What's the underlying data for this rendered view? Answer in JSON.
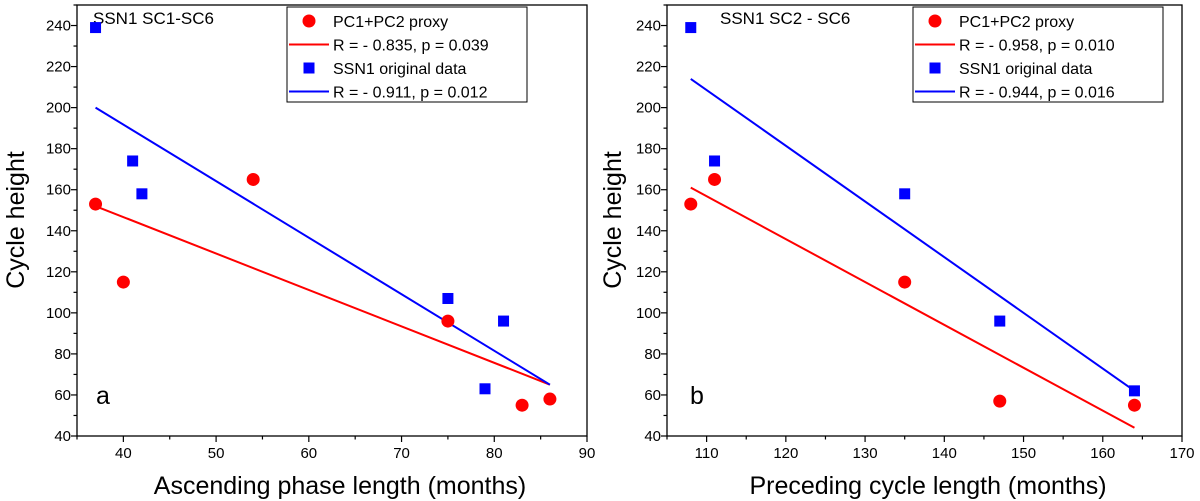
{
  "chart_data": [
    {
      "type": "scatter",
      "panel_title": "SSN1 SC1-SC6",
      "panel_letter": "a",
      "xlabel": "Ascending phase length (months)",
      "ylabel": "Cycle height",
      "xlim": [
        35,
        90
      ],
      "ylim": [
        40,
        250
      ],
      "xticks": [
        40,
        50,
        60,
        70,
        80,
        90
      ],
      "yticks": [
        40,
        60,
        80,
        100,
        120,
        140,
        160,
        180,
        200,
        220,
        240
      ],
      "series": [
        {
          "name": "PC1+PC2 proxy",
          "marker": "circle",
          "color": "#ff0000",
          "points": [
            [
              37,
              153
            ],
            [
              40,
              115
            ],
            [
              54,
              165
            ],
            [
              75,
              96
            ],
            [
              83,
              55
            ],
            [
              86,
              58
            ]
          ],
          "fit": {
            "label": "R = - 0.835, p = 0.039",
            "x": [
              37,
              86
            ],
            "y": [
              152,
              65
            ]
          }
        },
        {
          "name": "SSN1 original data",
          "marker": "square",
          "color": "#0000ff",
          "points": [
            [
              37,
              239
            ],
            [
              41,
              174
            ],
            [
              42,
              158
            ],
            [
              75,
              107
            ],
            [
              79,
              63
            ],
            [
              81,
              96
            ]
          ],
          "fit": {
            "label": "R = - 0.911, p = 0.012",
            "x": [
              37,
              86
            ],
            "y": [
              200,
              65
            ]
          }
        }
      ]
    },
    {
      "type": "scatter",
      "panel_title": "SSN1 SC2 - SC6",
      "panel_letter": "b",
      "xlabel": "Preceding cycle length (months)",
      "ylabel": "Cycle height",
      "xlim": [
        105,
        170
      ],
      "ylim": [
        40,
        250
      ],
      "xticks": [
        110,
        120,
        130,
        140,
        150,
        160,
        170
      ],
      "yticks": [
        40,
        60,
        80,
        100,
        120,
        140,
        160,
        180,
        200,
        220,
        240
      ],
      "series": [
        {
          "name": "PC1+PC2 proxy",
          "marker": "circle",
          "color": "#ff0000",
          "points": [
            [
              108,
              153
            ],
            [
              111,
              165
            ],
            [
              135,
              115
            ],
            [
              147,
              57
            ],
            [
              164,
              55
            ]
          ],
          "fit": {
            "label": "R = - 0.958, p = 0.010",
            "x": [
              108,
              164
            ],
            "y": [
              161,
              44
            ]
          }
        },
        {
          "name": "SSN1 original data",
          "marker": "square",
          "color": "#0000ff",
          "points": [
            [
              108,
              239
            ],
            [
              111,
              174
            ],
            [
              135,
              158
            ],
            [
              147,
              96
            ],
            [
              164,
              62
            ]
          ],
          "fit": {
            "label": "R = - 0.944, p = 0.016",
            "x": [
              108,
              164
            ],
            "y": [
              214,
              62
            ]
          }
        }
      ]
    }
  ]
}
